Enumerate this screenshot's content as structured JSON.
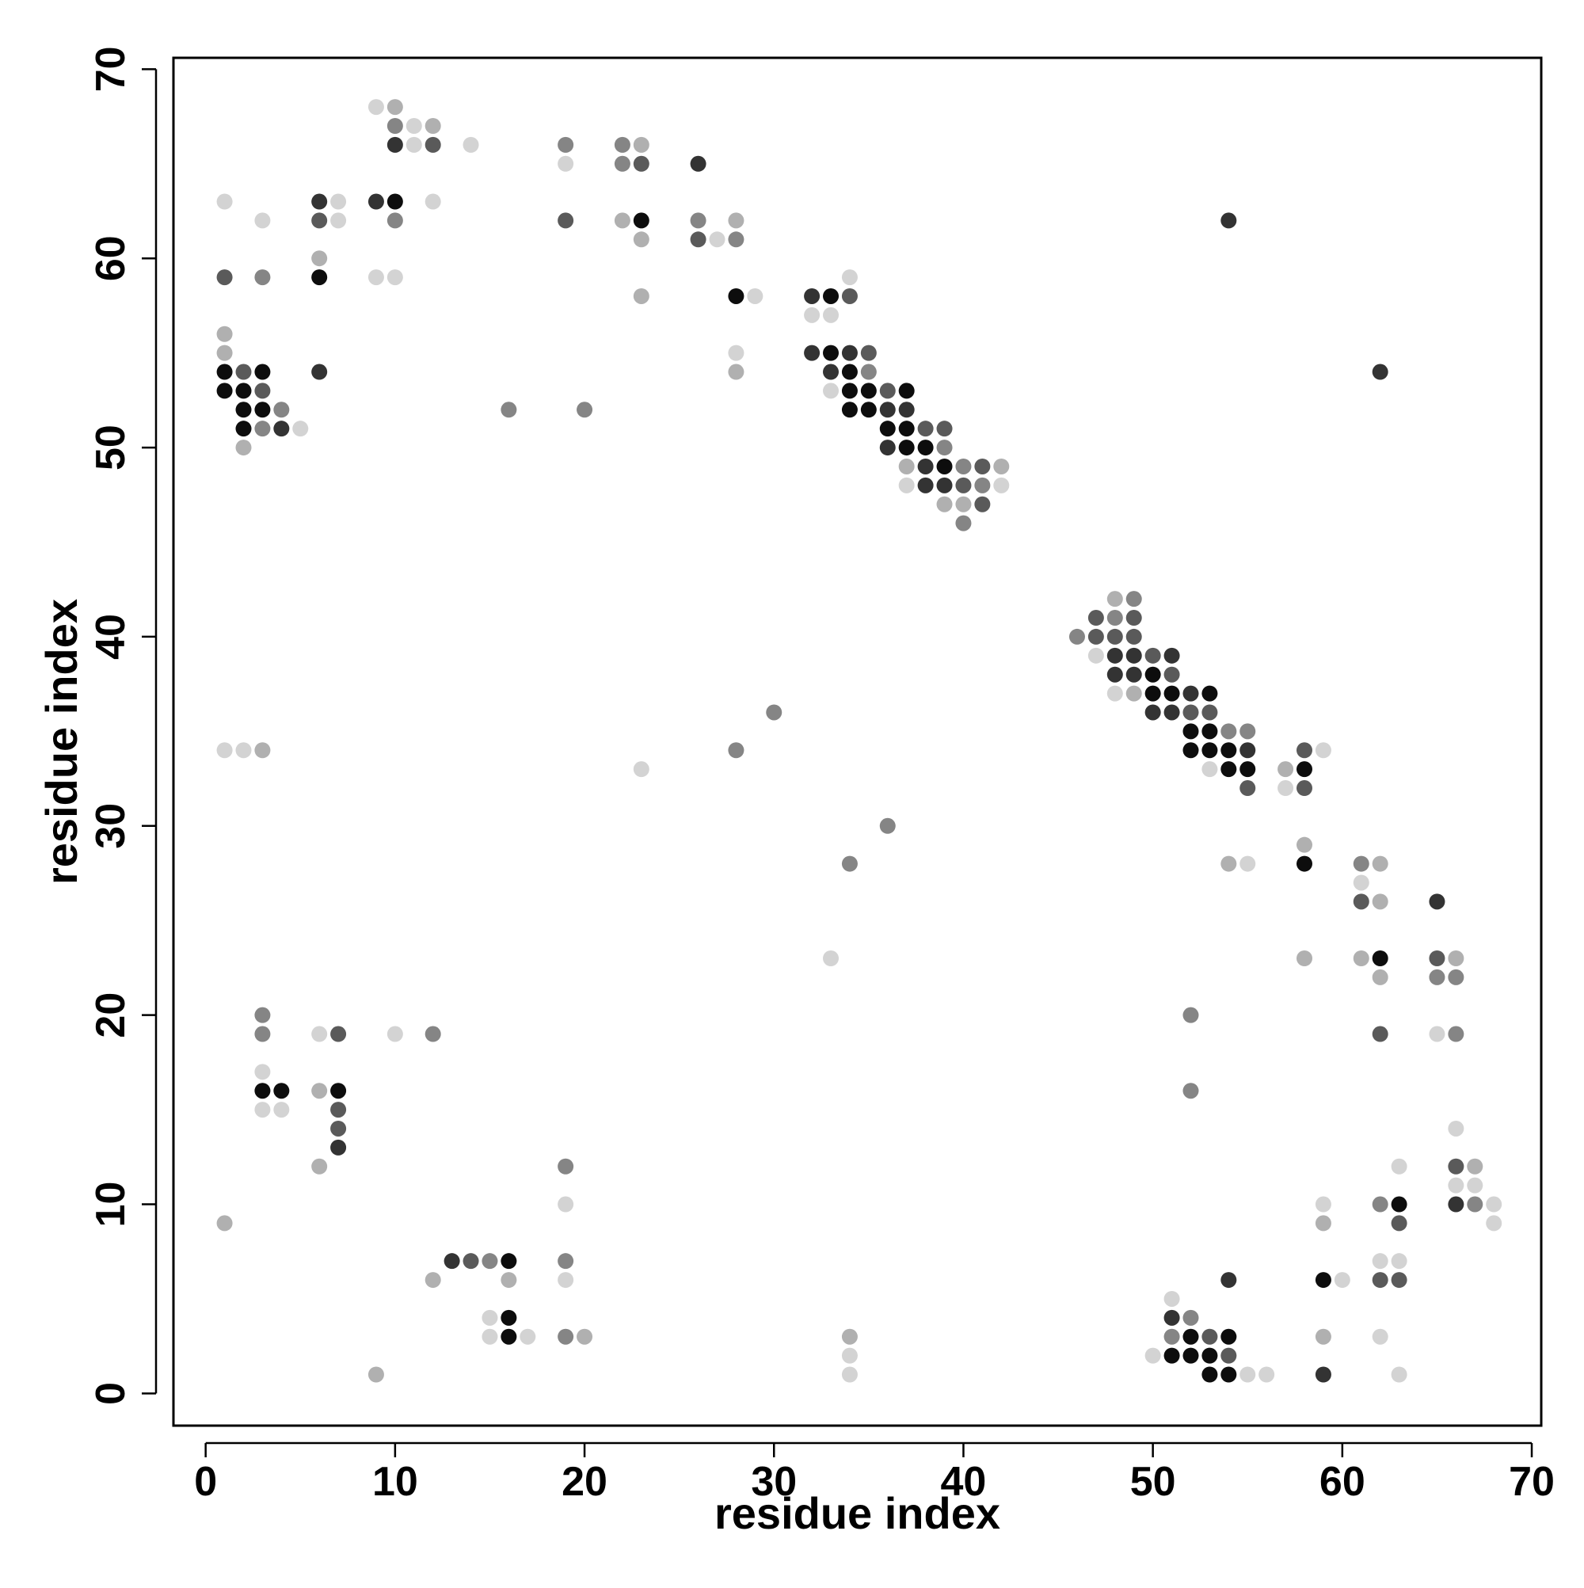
{
  "chart_data": {
    "type": "scatter",
    "title": "",
    "xlabel": "residue index",
    "ylabel": "residue index",
    "xlim": [
      -1.7,
      70.5
    ],
    "ylim": [
      -1.7,
      70.6
    ],
    "x_ticks": [
      "0",
      "10",
      "20",
      "30",
      "40",
      "50",
      "60",
      "70"
    ],
    "y_ticks": [
      "0",
      "10",
      "20",
      "30",
      "40",
      "50",
      "60",
      "70"
    ],
    "grid": false,
    "legend": "none",
    "palette": {
      "1": "#0d0d0d",
      "2": "#333333",
      "3": "#5a5a5a",
      "4": "#858585",
      "5": "#b0b0b0",
      "6": "#d3d3d3"
    },
    "points": [
      [
        1,
        63,
        6
      ],
      [
        1,
        59,
        3
      ],
      [
        1,
        56,
        5
      ],
      [
        1,
        55,
        5
      ],
      [
        1,
        54,
        1
      ],
      [
        1,
        53,
        1
      ],
      [
        1,
        34,
        6
      ],
      [
        1,
        9,
        5
      ],
      [
        2,
        54,
        3
      ],
      [
        2,
        53,
        1
      ],
      [
        2,
        52,
        1
      ],
      [
        2,
        51,
        1
      ],
      [
        2,
        50,
        5
      ],
      [
        2,
        34,
        6
      ],
      [
        3,
        62,
        6
      ],
      [
        3,
        59,
        4
      ],
      [
        3,
        54,
        1
      ],
      [
        3,
        53,
        3
      ],
      [
        3,
        52,
        1
      ],
      [
        3,
        51,
        4
      ],
      [
        3,
        34,
        5
      ],
      [
        3,
        20,
        4
      ],
      [
        3,
        19,
        4
      ],
      [
        3,
        17,
        6
      ],
      [
        3,
        16,
        1
      ],
      [
        3,
        15,
        6
      ],
      [
        4,
        52,
        4
      ],
      [
        4,
        51,
        2
      ],
      [
        4,
        16,
        1
      ],
      [
        4,
        15,
        6
      ],
      [
        5,
        51,
        6
      ],
      [
        6,
        63,
        2
      ],
      [
        6,
        62,
        3
      ],
      [
        6,
        60,
        5
      ],
      [
        6,
        59,
        1
      ],
      [
        6,
        54,
        2
      ],
      [
        6,
        19,
        6
      ],
      [
        6,
        16,
        5
      ],
      [
        6,
        12,
        5
      ],
      [
        7,
        63,
        6
      ],
      [
        7,
        62,
        6
      ],
      [
        7,
        19,
        3
      ],
      [
        7,
        16,
        1
      ],
      [
        7,
        15,
        3
      ],
      [
        7,
        14,
        3
      ],
      [
        7,
        13,
        2
      ],
      [
        9,
        68,
        6
      ],
      [
        9,
        63,
        2
      ],
      [
        9,
        59,
        6
      ],
      [
        9,
        1,
        5
      ],
      [
        10,
        68,
        5
      ],
      [
        10,
        67,
        4
      ],
      [
        10,
        66,
        2
      ],
      [
        10,
        63,
        1
      ],
      [
        10,
        62,
        4
      ],
      [
        10,
        59,
        6
      ],
      [
        10,
        19,
        6
      ],
      [
        11,
        67,
        6
      ],
      [
        11,
        66,
        6
      ],
      [
        12,
        67,
        5
      ],
      [
        12,
        66,
        3
      ],
      [
        12,
        63,
        6
      ],
      [
        12,
        19,
        4
      ],
      [
        12,
        6,
        5
      ],
      [
        13,
        7,
        2
      ],
      [
        14,
        66,
        6
      ],
      [
        14,
        7,
        3
      ],
      [
        15,
        7,
        4
      ],
      [
        15,
        4,
        6
      ],
      [
        15,
        3,
        6
      ],
      [
        16,
        52,
        4
      ],
      [
        16,
        7,
        1
      ],
      [
        16,
        6,
        5
      ],
      [
        16,
        4,
        1
      ],
      [
        16,
        3,
        1
      ],
      [
        17,
        3,
        6
      ],
      [
        19,
        66,
        4
      ],
      [
        19,
        65,
        6
      ],
      [
        19,
        62,
        3
      ],
      [
        19,
        12,
        4
      ],
      [
        19,
        10,
        6
      ],
      [
        19,
        7,
        4
      ],
      [
        19,
        6,
        6
      ],
      [
        19,
        3,
        4
      ],
      [
        20,
        52,
        4
      ],
      [
        20,
        3,
        5
      ],
      [
        22,
        66,
        4
      ],
      [
        22,
        65,
        4
      ],
      [
        22,
        62,
        5
      ],
      [
        23,
        66,
        5
      ],
      [
        23,
        65,
        3
      ],
      [
        23,
        62,
        1
      ],
      [
        23,
        61,
        5
      ],
      [
        23,
        58,
        5
      ],
      [
        23,
        33,
        6
      ],
      [
        26,
        65,
        2
      ],
      [
        26,
        62,
        4
      ],
      [
        26,
        61,
        3
      ],
      [
        27,
        61,
        6
      ],
      [
        28,
        62,
        5
      ],
      [
        28,
        61,
        4
      ],
      [
        28,
        58,
        1
      ],
      [
        28,
        55,
        6
      ],
      [
        28,
        54,
        5
      ],
      [
        28,
        34,
        4
      ],
      [
        29,
        58,
        6
      ],
      [
        30,
        36,
        4
      ],
      [
        32,
        58,
        2
      ],
      [
        32,
        57,
        6
      ],
      [
        32,
        55,
        2
      ],
      [
        33,
        58,
        1
      ],
      [
        33,
        57,
        6
      ],
      [
        33,
        55,
        1
      ],
      [
        33,
        54,
        2
      ],
      [
        33,
        53,
        6
      ],
      [
        33,
        23,
        6
      ],
      [
        34,
        59,
        6
      ],
      [
        34,
        58,
        3
      ],
      [
        34,
        55,
        2
      ],
      [
        34,
        54,
        1
      ],
      [
        34,
        53,
        1
      ],
      [
        34,
        52,
        1
      ],
      [
        34,
        28,
        4
      ],
      [
        34,
        3,
        5
      ],
      [
        34,
        2,
        6
      ],
      [
        34,
        1,
        6
      ],
      [
        35,
        55,
        3
      ],
      [
        35,
        54,
        4
      ],
      [
        35,
        53,
        1
      ],
      [
        35,
        52,
        1
      ],
      [
        36,
        53,
        3
      ],
      [
        36,
        52,
        2
      ],
      [
        36,
        51,
        1
      ],
      [
        36,
        50,
        2
      ],
      [
        36,
        30,
        4
      ],
      [
        37,
        53,
        1
      ],
      [
        37,
        52,
        2
      ],
      [
        37,
        51,
        1
      ],
      [
        37,
        50,
        1
      ],
      [
        37,
        49,
        5
      ],
      [
        37,
        48,
        6
      ],
      [
        38,
        51,
        3
      ],
      [
        38,
        50,
        1
      ],
      [
        38,
        49,
        2
      ],
      [
        38,
        48,
        2
      ],
      [
        39,
        51,
        3
      ],
      [
        39,
        50,
        4
      ],
      [
        39,
        49,
        1
      ],
      [
        39,
        48,
        2
      ],
      [
        39,
        47,
        5
      ],
      [
        40,
        49,
        4
      ],
      [
        40,
        48,
        3
      ],
      [
        40,
        47,
        5
      ],
      [
        40,
        46,
        4
      ],
      [
        41,
        49,
        3
      ],
      [
        41,
        48,
        4
      ],
      [
        41,
        47,
        3
      ],
      [
        42,
        49,
        5
      ],
      [
        42,
        48,
        6
      ],
      [
        46,
        40,
        4
      ],
      [
        47,
        41,
        3
      ],
      [
        47,
        40,
        3
      ],
      [
        47,
        39,
        6
      ],
      [
        48,
        42,
        5
      ],
      [
        48,
        41,
        4
      ],
      [
        48,
        40,
        3
      ],
      [
        48,
        39,
        2
      ],
      [
        48,
        38,
        2
      ],
      [
        48,
        37,
        6
      ],
      [
        49,
        42,
        4
      ],
      [
        49,
        41,
        3
      ],
      [
        49,
        40,
        3
      ],
      [
        49,
        39,
        2
      ],
      [
        49,
        38,
        2
      ],
      [
        49,
        37,
        5
      ],
      [
        50,
        39,
        3
      ],
      [
        50,
        38,
        1
      ],
      [
        50,
        37,
        1
      ],
      [
        50,
        36,
        2
      ],
      [
        50,
        2,
        6
      ],
      [
        51,
        39,
        2
      ],
      [
        51,
        38,
        3
      ],
      [
        51,
        37,
        1
      ],
      [
        51,
        36,
        2
      ],
      [
        51,
        5,
        6
      ],
      [
        51,
        4,
        2
      ],
      [
        51,
        3,
        4
      ],
      [
        51,
        2,
        1
      ],
      [
        52,
        37,
        2
      ],
      [
        52,
        36,
        3
      ],
      [
        52,
        35,
        1
      ],
      [
        52,
        34,
        1
      ],
      [
        52,
        20,
        4
      ],
      [
        52,
        16,
        4
      ],
      [
        52,
        4,
        4
      ],
      [
        52,
        3,
        1
      ],
      [
        52,
        2,
        1
      ],
      [
        53,
        37,
        1
      ],
      [
        53,
        36,
        3
      ],
      [
        53,
        35,
        1
      ],
      [
        53,
        34,
        1
      ],
      [
        53,
        33,
        6
      ],
      [
        53,
        3,
        3
      ],
      [
        53,
        2,
        1
      ],
      [
        53,
        1,
        1
      ],
      [
        54,
        62,
        2
      ],
      [
        54,
        35,
        4
      ],
      [
        54,
        34,
        1
      ],
      [
        54,
        33,
        1
      ],
      [
        54,
        28,
        5
      ],
      [
        54,
        6,
        2
      ],
      [
        54,
        3,
        1
      ],
      [
        54,
        2,
        3
      ],
      [
        54,
        1,
        1
      ],
      [
        55,
        35,
        4
      ],
      [
        55,
        34,
        2
      ],
      [
        55,
        33,
        1
      ],
      [
        55,
        32,
        3
      ],
      [
        55,
        28,
        6
      ],
      [
        55,
        1,
        6
      ],
      [
        56,
        1,
        6
      ],
      [
        57,
        33,
        5
      ],
      [
        57,
        32,
        6
      ],
      [
        58,
        34,
        3
      ],
      [
        58,
        33,
        1
      ],
      [
        58,
        32,
        3
      ],
      [
        58,
        29,
        5
      ],
      [
        58,
        28,
        1
      ],
      [
        58,
        23,
        5
      ],
      [
        59,
        34,
        6
      ],
      [
        59,
        10,
        6
      ],
      [
        59,
        9,
        5
      ],
      [
        59,
        6,
        1
      ],
      [
        59,
        3,
        5
      ],
      [
        59,
        1,
        2
      ],
      [
        60,
        6,
        6
      ],
      [
        61,
        28,
        4
      ],
      [
        61,
        27,
        6
      ],
      [
        61,
        26,
        3
      ],
      [
        61,
        23,
        5
      ],
      [
        62,
        54,
        2
      ],
      [
        62,
        28,
        5
      ],
      [
        62,
        26,
        5
      ],
      [
        62,
        23,
        1
      ],
      [
        62,
        22,
        5
      ],
      [
        62,
        19,
        3
      ],
      [
        62,
        10,
        4
      ],
      [
        62,
        7,
        6
      ],
      [
        62,
        6,
        3
      ],
      [
        62,
        3,
        6
      ],
      [
        63,
        12,
        6
      ],
      [
        63,
        10,
        1
      ],
      [
        63,
        9,
        3
      ],
      [
        63,
        7,
        6
      ],
      [
        63,
        6,
        3
      ],
      [
        63,
        1,
        6
      ],
      [
        65,
        26,
        2
      ],
      [
        65,
        23,
        3
      ],
      [
        65,
        22,
        4
      ],
      [
        65,
        19,
        6
      ],
      [
        66,
        23,
        5
      ],
      [
        66,
        22,
        4
      ],
      [
        66,
        19,
        4
      ],
      [
        66,
        14,
        6
      ],
      [
        66,
        12,
        3
      ],
      [
        66,
        11,
        6
      ],
      [
        66,
        10,
        2
      ],
      [
        67,
        12,
        5
      ],
      [
        67,
        11,
        6
      ],
      [
        67,
        10,
        4
      ],
      [
        68,
        10,
        6
      ],
      [
        68,
        9,
        6
      ]
    ]
  }
}
